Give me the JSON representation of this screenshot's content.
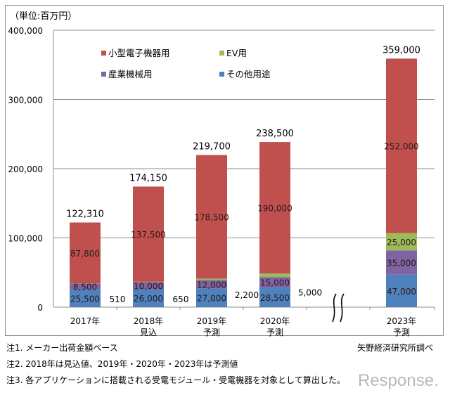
{
  "unit_label": "（単位:百万円）",
  "chart_data": {
    "type": "bar",
    "stacked": true,
    "title": "",
    "xlabel": "",
    "ylabel": "",
    "unit": "百万円",
    "ylim": [
      0,
      400000
    ],
    "yticks": [
      0,
      100000,
      200000,
      300000,
      400000
    ],
    "ytick_labels": [
      "0",
      "100,000",
      "200,000",
      "300,000",
      "400,000"
    ],
    "grid": true,
    "legend_position": "top-center",
    "categories": [
      {
        "label": "2017年",
        "sub": ""
      },
      {
        "label": "2018年",
        "sub": "見込"
      },
      {
        "label": "2019年",
        "sub": "予測"
      },
      {
        "label": "2020年",
        "sub": "予測"
      },
      {
        "label": "2023年",
        "sub": "予測"
      }
    ],
    "axis_break_between": [
      "2020年",
      "2023年"
    ],
    "series": [
      {
        "name": "その他用途",
        "color": "#4f81bd",
        "values": [
          25500,
          26000,
          27000,
          28500,
          47000
        ],
        "labels": [
          "25,500",
          "26,000",
          "27,000",
          "28,500",
          "47,000"
        ]
      },
      {
        "name": "産業機械用",
        "color": "#8064a2",
        "values": [
          8500,
          10000,
          12000,
          15000,
          35000
        ],
        "labels": [
          "8,500",
          "10,000",
          "12,000",
          "15,000",
          "35,000"
        ]
      },
      {
        "name": "EV用",
        "color": "#9bbb59",
        "values": [
          510,
          650,
          2200,
          5000,
          25000
        ],
        "labels": [
          "510",
          "650",
          "2,200",
          "5,000",
          "25,000"
        ]
      },
      {
        "name": "小型電子機器用",
        "color": "#c0504d",
        "values": [
          87800,
          137500,
          178500,
          190000,
          252000
        ],
        "labels": [
          "87,800",
          "137,500",
          "178,500",
          "190,000",
          "252,000"
        ]
      }
    ],
    "totals": [
      122310,
      174150,
      219700,
      238500,
      359000
    ],
    "total_labels": [
      "122,310",
      "174,150",
      "219,700",
      "238,500",
      "359,000"
    ],
    "legend": [
      {
        "name": "小型電子機器用",
        "color": "#c0504d"
      },
      {
        "name": "EV用",
        "color": "#9bbb59"
      },
      {
        "name": "産業機械用",
        "color": "#8064a2"
      },
      {
        "name": "その他用途",
        "color": "#4f81bd"
      }
    ]
  },
  "notes": [
    "注1. メーカー出荷金額ベース",
    "注2. 2018年は見込値、2019年・2020年・2023年は予測値",
    "注3. 各アプリケーションに搭載される受電モジュール・受電機器を対象として算出した。"
  ],
  "source": "矢野経済研究所調べ",
  "watermark": "Response."
}
